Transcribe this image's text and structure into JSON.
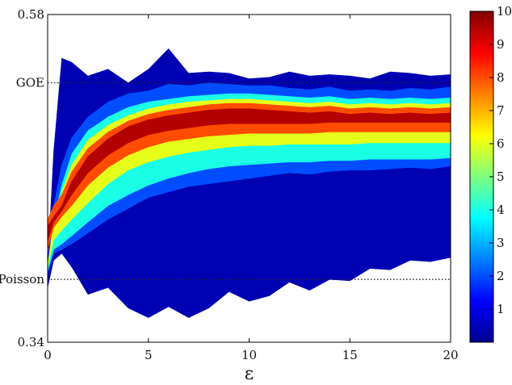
{
  "chart_data": {
    "type": "area",
    "xlabel": "ε",
    "ylabel": "",
    "xlim": [
      0,
      20
    ],
    "ylim": [
      0.34,
      0.58
    ],
    "x_ticks": [
      "0",
      "5",
      "10",
      "15",
      "20"
    ],
    "y_tick_labels": [
      {
        "value": 0.58,
        "label": "0.58"
      },
      {
        "value": 0.34,
        "label": "0.34"
      }
    ],
    "reference_lines": [
      {
        "label": "GOE",
        "y": 0.53,
        "style": "dotted"
      },
      {
        "label": "Poisson",
        "y": 0.386,
        "style": "dotted"
      }
    ],
    "colorbar": {
      "min": 0,
      "max": 10,
      "ticks": [
        "1",
        "2",
        "3",
        "4",
        "5",
        "6",
        "7",
        "8",
        "9",
        "10"
      ]
    },
    "x": [
      0.0,
      0.3,
      0.7,
      1.2,
      2.0,
      3.0,
      4.0,
      5.0,
      6.0,
      7.0,
      8.0,
      9.0,
      10.0,
      11.0,
      12.0,
      13.0,
      14.0,
      15.0,
      16.0,
      17.0,
      18.0,
      19.0,
      20.0
    ],
    "bands": [
      {
        "level": 0.5,
        "upper": [
          0.395,
          0.48,
          0.548,
          0.545,
          0.535,
          0.54,
          0.53,
          0.54,
          0.555,
          0.537,
          0.538,
          0.537,
          0.533,
          0.534,
          0.538,
          0.535,
          0.536,
          0.535,
          0.533,
          0.538,
          0.537,
          0.535,
          0.536
        ],
        "lower": [
          0.38,
          0.4,
          0.405,
          0.395,
          0.375,
          0.38,
          0.365,
          0.358,
          0.366,
          0.358,
          0.365,
          0.377,
          0.37,
          0.374,
          0.384,
          0.378,
          0.386,
          0.385,
          0.394,
          0.393,
          0.4,
          0.399,
          0.402
        ]
      },
      {
        "level": 2.0,
        "upper": [
          0.395,
          0.44,
          0.47,
          0.49,
          0.505,
          0.516,
          0.522,
          0.524,
          0.529,
          0.528,
          0.53,
          0.529,
          0.528,
          0.528,
          0.526,
          0.525,
          0.527,
          0.524,
          0.525,
          0.524,
          0.526,
          0.525,
          0.527
        ],
        "lower": [
          0.39,
          0.405,
          0.408,
          0.412,
          0.42,
          0.43,
          0.438,
          0.446,
          0.45,
          0.454,
          0.456,
          0.458,
          0.46,
          0.462,
          0.464,
          0.463,
          0.465,
          0.466,
          0.466,
          0.467,
          0.468,
          0.467,
          0.469
        ]
      },
      {
        "level": 4.0,
        "upper": [
          0.395,
          0.43,
          0.455,
          0.478,
          0.495,
          0.505,
          0.512,
          0.516,
          0.518,
          0.52,
          0.521,
          0.522,
          0.522,
          0.521,
          0.52,
          0.519,
          0.52,
          0.518,
          0.519,
          0.518,
          0.519,
          0.518,
          0.519
        ],
        "lower": [
          0.392,
          0.408,
          0.412,
          0.418,
          0.428,
          0.44,
          0.448,
          0.455,
          0.46,
          0.464,
          0.467,
          0.469,
          0.47,
          0.471,
          0.472,
          0.472,
          0.473,
          0.473,
          0.474,
          0.474,
          0.474,
          0.474,
          0.475
        ]
      },
      {
        "level": 6.0,
        "upper": [
          0.396,
          0.428,
          0.45,
          0.47,
          0.488,
          0.499,
          0.506,
          0.511,
          0.514,
          0.516,
          0.517,
          0.518,
          0.518,
          0.517,
          0.516,
          0.515,
          0.516,
          0.514,
          0.515,
          0.514,
          0.515,
          0.514,
          0.515
        ],
        "lower": [
          0.395,
          0.415,
          0.422,
          0.43,
          0.442,
          0.456,
          0.466,
          0.472,
          0.476,
          0.479,
          0.481,
          0.483,
          0.484,
          0.484,
          0.485,
          0.485,
          0.485,
          0.485,
          0.486,
          0.486,
          0.486,
          0.486,
          0.486
        ]
      },
      {
        "level": 8.0,
        "upper": [
          0.43,
          0.44,
          0.448,
          0.465,
          0.482,
          0.494,
          0.502,
          0.507,
          0.51,
          0.512,
          0.514,
          0.515,
          0.515,
          0.514,
          0.513,
          0.512,
          0.513,
          0.511,
          0.512,
          0.511,
          0.512,
          0.511,
          0.512
        ],
        "lower": [
          0.408,
          0.424,
          0.432,
          0.44,
          0.455,
          0.468,
          0.477,
          0.483,
          0.487,
          0.489,
          0.491,
          0.492,
          0.493,
          0.493,
          0.493,
          0.493,
          0.494,
          0.494,
          0.494,
          0.494,
          0.494,
          0.494,
          0.494
        ]
      },
      {
        "level": 9.5,
        "upper": [
          0.425,
          0.432,
          0.44,
          0.458,
          0.476,
          0.489,
          0.498,
          0.503,
          0.506,
          0.508,
          0.51,
          0.511,
          0.511,
          0.51,
          0.509,
          0.508,
          0.509,
          0.507,
          0.508,
          0.507,
          0.508,
          0.507,
          0.508
        ],
        "lower": [
          0.414,
          0.428,
          0.436,
          0.448,
          0.464,
          0.477,
          0.486,
          0.492,
          0.495,
          0.497,
          0.499,
          0.5,
          0.5,
          0.5,
          0.5,
          0.5,
          0.501,
          0.501,
          0.501,
          0.501,
          0.501,
          0.501,
          0.501
        ]
      }
    ]
  }
}
